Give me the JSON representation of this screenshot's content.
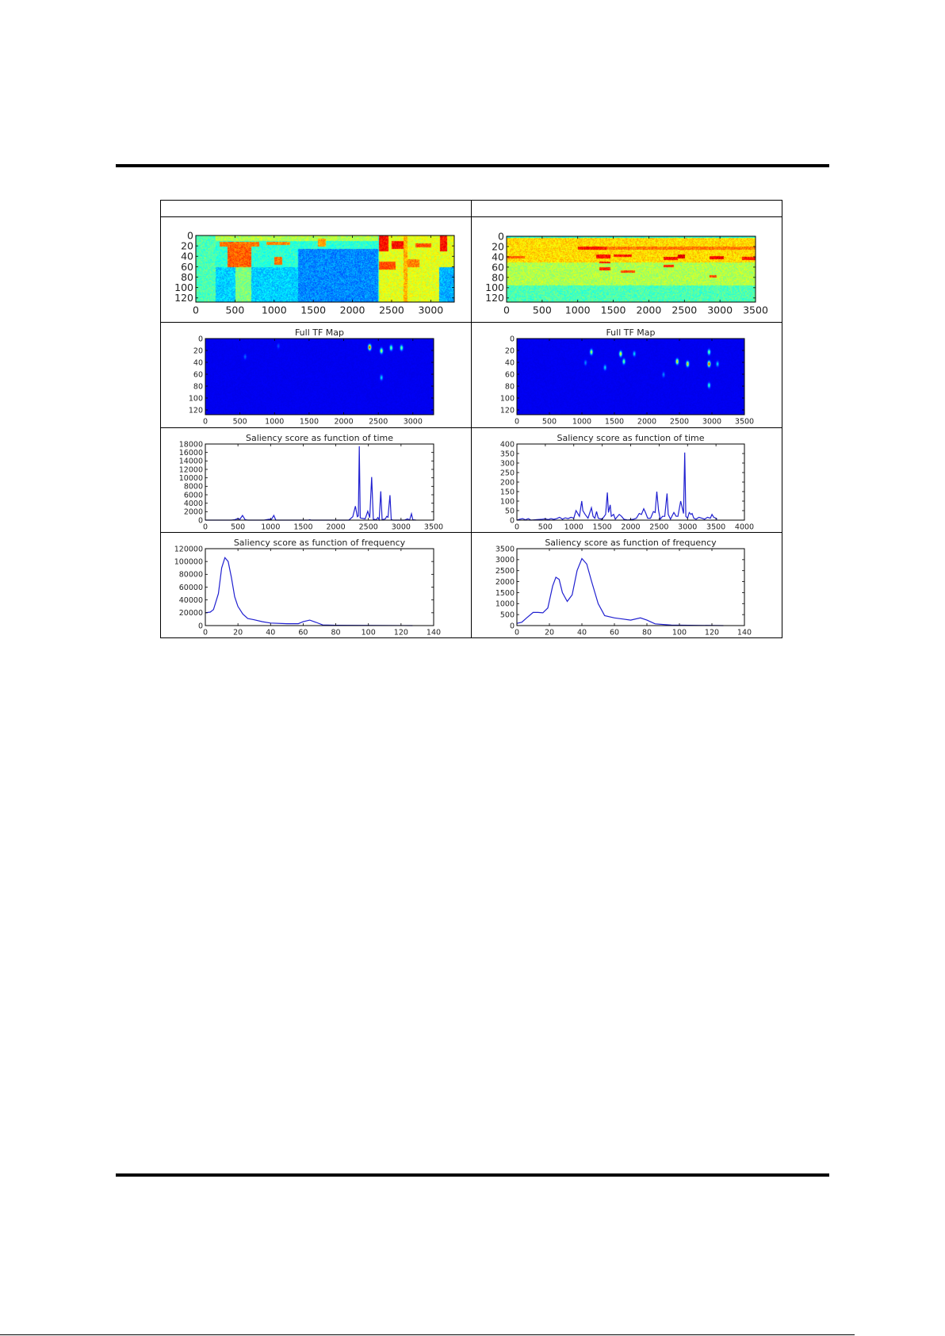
{
  "table": {
    "header_left": "",
    "header_right": ""
  },
  "chart_data": [
    {
      "type": "heatmap",
      "colormap": "jet",
      "title": "",
      "xlim": [
        0,
        3300
      ],
      "ylim": [
        0,
        128
      ],
      "y_inverted": true,
      "xticks": [
        "0",
        "500",
        "1000",
        "1500",
        "2000",
        "2500",
        "3000"
      ],
      "yticks": [
        "0",
        "20",
        "40",
        "60",
        "80",
        "100",
        "120"
      ],
      "base_level": 0.42,
      "regions": [
        [
          0,
          250,
          0,
          128,
          0.45
        ],
        [
          250,
          2320,
          60,
          128,
          0.33
        ],
        [
          1300,
          2320,
          25,
          128,
          0.26
        ],
        [
          250,
          2320,
          0,
          10,
          0.55
        ],
        [
          500,
          700,
          30,
          128,
          0.5
        ],
        [
          2330,
          3300,
          0,
          128,
          0.6
        ],
        [
          3100,
          3300,
          60,
          128,
          0.3
        ],
        [
          2330,
          2450,
          0,
          30,
          0.86
        ],
        [
          2500,
          2700,
          10,
          25,
          0.86
        ],
        [
          2650,
          2700,
          0,
          128,
          0.7
        ],
        [
          2330,
          2550,
          50,
          65,
          0.8
        ],
        [
          2700,
          2850,
          45,
          60,
          0.75
        ],
        [
          3110,
          3200,
          0,
          30,
          0.86
        ],
        [
          400,
          700,
          15,
          60,
          0.78
        ],
        [
          300,
          800,
          12,
          20,
          0.76
        ],
        [
          900,
          1200,
          12,
          18,
          0.74
        ],
        [
          1000,
          1100,
          40,
          55,
          0.76
        ],
        [
          1550,
          1650,
          5,
          20,
          0.72
        ],
        [
          2800,
          3000,
          15,
          22,
          0.8
        ]
      ]
    },
    {
      "type": "heatmap",
      "colormap": "jet",
      "title": "",
      "xlim": [
        0,
        3500
      ],
      "ylim": [
        0,
        128
      ],
      "y_inverted": true,
      "xticks": [
        "0",
        "500",
        "1000",
        "1500",
        "2000",
        "2500",
        "3000",
        "3500"
      ],
      "yticks": [
        "0",
        "20",
        "40",
        "60",
        "80",
        "100",
        "120"
      ],
      "base_level": 0.55,
      "regions": [
        [
          0,
          3500,
          95,
          128,
          0.45
        ],
        [
          0,
          3500,
          0,
          50,
          0.66
        ],
        [
          0,
          3500,
          0,
          3,
          0.4
        ],
        [
          1000,
          3500,
          20,
          26,
          0.76
        ],
        [
          1000,
          1400,
          20,
          26,
          0.86
        ],
        [
          1250,
          1450,
          35,
          42,
          0.86
        ],
        [
          1300,
          1450,
          48,
          52,
          0.85
        ],
        [
          1300,
          1450,
          60,
          65,
          0.84
        ],
        [
          1500,
          1750,
          35,
          40,
          0.86
        ],
        [
          1600,
          1800,
          65,
          70,
          0.8
        ],
        [
          2200,
          2400,
          40,
          45,
          0.86
        ],
        [
          2200,
          2350,
          55,
          60,
          0.84
        ],
        [
          2400,
          2500,
          35,
          42,
          0.9
        ],
        [
          2850,
          3050,
          38,
          44,
          0.88
        ],
        [
          2850,
          2950,
          75,
          80,
          0.82
        ],
        [
          3300,
          3500,
          40,
          45,
          0.86
        ],
        [
          0,
          250,
          38,
          42,
          0.78
        ]
      ]
    },
    {
      "type": "heatmap",
      "colormap": "jet",
      "title": "Full TF Map",
      "xlim": [
        0,
        3300
      ],
      "ylim": [
        0,
        128
      ],
      "y_inverted": true,
      "xticks": [
        "0",
        "500",
        "1000",
        "1500",
        "2000",
        "2500",
        "3000"
      ],
      "yticks": [
        "0",
        "20",
        "40",
        "60",
        "80",
        "100",
        "120"
      ],
      "hotspots": [
        [
          2370,
          14,
          1.0
        ],
        [
          2540,
          20,
          0.6
        ],
        [
          2680,
          15,
          0.5
        ],
        [
          2830,
          15,
          0.5
        ],
        [
          2540,
          65,
          0.3
        ],
        [
          570,
          30,
          0.15
        ],
        [
          1050,
          12,
          0.12
        ]
      ]
    },
    {
      "type": "heatmap",
      "colormap": "jet",
      "title": "Full TF Map",
      "xlim": [
        0,
        3500
      ],
      "ylim": [
        0,
        128
      ],
      "y_inverted": true,
      "xticks": [
        "0",
        "500",
        "1000",
        "1500",
        "2000",
        "2500",
        "3000",
        "3500"
      ],
      "yticks": [
        "0",
        "20",
        "40",
        "60",
        "80",
        "100",
        "120"
      ],
      "hotspots": [
        [
          1140,
          22,
          0.6
        ],
        [
          1590,
          25,
          0.7
        ],
        [
          1640,
          38,
          0.5
        ],
        [
          1800,
          25,
          0.3
        ],
        [
          2460,
          38,
          0.75
        ],
        [
          2620,
          42,
          0.75
        ],
        [
          2950,
          42,
          1.0
        ],
        [
          2950,
          22,
          0.5
        ],
        [
          2950,
          78,
          0.4
        ],
        [
          1350,
          48,
          0.3
        ],
        [
          3080,
          42,
          0.3
        ],
        [
          1050,
          40,
          0.2
        ],
        [
          2250,
          60,
          0.2
        ]
      ]
    },
    {
      "type": "line",
      "title": "Saliency score as function of time",
      "xlim": [
        0,
        3500
      ],
      "ylim": [
        0,
        18000
      ],
      "xticks": [
        "0",
        "500",
        "1000",
        "1500",
        "2000",
        "2500",
        "3000",
        "3500"
      ],
      "yticks": [
        "0",
        "2000",
        "4000",
        "6000",
        "8000",
        "10000",
        "12000",
        "14000",
        "16000",
        "18000"
      ],
      "x": [
        0,
        400,
        450,
        500,
        530,
        570,
        610,
        650,
        900,
        980,
        1010,
        1050,
        1080,
        1580,
        1600,
        1620,
        2200,
        2260,
        2300,
        2330,
        2345,
        2360,
        2375,
        2450,
        2490,
        2520,
        2550,
        2575,
        2620,
        2645,
        2665,
        2690,
        2710,
        2760,
        2780,
        2800,
        2830,
        2850,
        2880,
        3050,
        3100,
        3130,
        3160,
        3180,
        3230
      ],
      "y": [
        0,
        0,
        100,
        400,
        200,
        1100,
        100,
        0,
        0,
        200,
        100,
        1100,
        0,
        0,
        100,
        0,
        0,
        800,
        3300,
        800,
        1000,
        17500,
        500,
        300,
        2100,
        600,
        10200,
        200,
        100,
        600,
        100,
        6800,
        100,
        300,
        900,
        700,
        5900,
        100,
        0,
        0,
        300,
        0,
        1500,
        100,
        0
      ]
    },
    {
      "type": "line",
      "title": "Saliency score as function of time",
      "xlim": [
        0,
        4000
      ],
      "ylim": [
        0,
        400
      ],
      "xticks": [
        "0",
        "500",
        "1000",
        "1500",
        "2000",
        "2500",
        "3000",
        "3500",
        "4000"
      ],
      "yticks": [
        "0",
        "50",
        "100",
        "150",
        "200",
        "250",
        "300",
        "350",
        "400"
      ],
      "x": [
        0,
        50,
        100,
        150,
        200,
        250,
        350,
        450,
        500,
        550,
        600,
        650,
        700,
        750,
        800,
        850,
        900,
        950,
        1000,
        1040,
        1080,
        1100,
        1140,
        1160,
        1200,
        1250,
        1310,
        1340,
        1370,
        1400,
        1430,
        1500,
        1560,
        1590,
        1610,
        1640,
        1660,
        1700,
        1730,
        1800,
        1840,
        1880,
        1950,
        2050,
        2100,
        2150,
        2190,
        2230,
        2260,
        2300,
        2350,
        2400,
        2430,
        2460,
        2490,
        2520,
        2560,
        2600,
        2640,
        2660,
        2700,
        2760,
        2800,
        2830,
        2880,
        2910,
        2930,
        2950,
        2970,
        3000,
        3030,
        3060,
        3080,
        3110,
        3150,
        3200,
        3250,
        3300,
        3350,
        3400,
        3430,
        3460,
        3500,
        3520
      ],
      "y": [
        0,
        5,
        8,
        2,
        8,
        0,
        3,
        5,
        7,
        3,
        8,
        4,
        8,
        15,
        5,
        12,
        8,
        15,
        10,
        50,
        30,
        20,
        100,
        50,
        30,
        10,
        65,
        20,
        10,
        45,
        10,
        5,
        30,
        145,
        40,
        80,
        20,
        30,
        5,
        30,
        20,
        5,
        0,
        5,
        10,
        35,
        30,
        60,
        40,
        10,
        10,
        45,
        40,
        150,
        50,
        5,
        20,
        20,
        140,
        30,
        5,
        40,
        20,
        20,
        100,
        60,
        35,
        355,
        20,
        10,
        40,
        30,
        35,
        10,
        5,
        15,
        10,
        5,
        15,
        10,
        30,
        15,
        10,
        5
      ]
    },
    {
      "type": "line",
      "title": "Saliency score as function of frequency",
      "xlim": [
        0,
        140
      ],
      "ylim": [
        0,
        120000
      ],
      "xticks": [
        "0",
        "20",
        "40",
        "60",
        "80",
        "100",
        "120",
        "140"
      ],
      "yticks": [
        "0",
        "20000",
        "40000",
        "60000",
        "80000",
        "100000",
        "120000"
      ],
      "x": [
        0,
        3,
        5,
        8,
        10,
        12,
        14,
        16,
        18,
        20,
        23,
        26,
        30,
        35,
        40,
        50,
        57,
        60,
        64,
        68,
        72,
        80,
        127
      ],
      "y": [
        20000,
        21000,
        25000,
        50000,
        90000,
        106000,
        100000,
        75000,
        45000,
        30000,
        18000,
        11000,
        9000,
        6000,
        4000,
        3000,
        3000,
        6000,
        8500,
        5000,
        1000,
        500,
        0
      ]
    },
    {
      "type": "line",
      "title": "Saliency score as function of frequency",
      "xlim": [
        0,
        140
      ],
      "ylim": [
        0,
        3500
      ],
      "xticks": [
        "0",
        "20",
        "40",
        "60",
        "80",
        "100",
        "120",
        "140"
      ],
      "yticks": [
        "0",
        "500",
        "1000",
        "1500",
        "2000",
        "2500",
        "3000",
        "3500"
      ],
      "x": [
        0,
        3,
        6,
        10,
        13,
        16,
        19,
        22,
        24,
        26,
        28,
        31,
        34,
        37,
        40,
        43,
        46,
        50,
        54,
        60,
        65,
        70,
        76,
        80,
        85,
        95,
        127
      ],
      "y": [
        100,
        150,
        350,
        600,
        600,
        580,
        800,
        1800,
        2200,
        2100,
        1500,
        1100,
        1400,
        2500,
        3050,
        2800,
        2000,
        1000,
        450,
        350,
        300,
        250,
        350,
        250,
        80,
        20,
        0
      ]
    }
  ],
  "colors": {
    "line": "#2020d0",
    "axis": "#000000"
  }
}
